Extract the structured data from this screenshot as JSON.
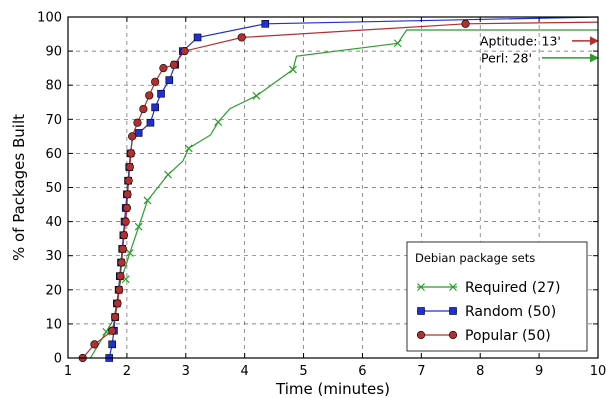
{
  "chart_data": {
    "type": "line",
    "xlabel": "Time (minutes)",
    "ylabel": "% of Packages Built",
    "xlim": [
      1,
      10
    ],
    "ylim": [
      0,
      100
    ],
    "xticks": [
      1,
      2,
      3,
      4,
      5,
      6,
      7,
      8,
      9,
      10
    ],
    "yticks": [
      0,
      10,
      20,
      30,
      40,
      50,
      60,
      70,
      80,
      90,
      100
    ],
    "grid": true,
    "grid_style": "dashed",
    "legend": {
      "title": "Debian package sets",
      "placement": "lower-right"
    },
    "series": [
      {
        "name": "Required (27)",
        "color": "#2a9d2a",
        "marker": "x",
        "x": [
          1.38,
          1.65,
          1.78,
          1.82,
          1.86,
          1.9,
          1.98,
          2.05,
          2.2,
          2.35,
          2.7,
          2.95,
          3.05,
          3.42,
          3.55,
          3.75,
          4.2,
          4.82,
          4.88,
          6.6,
          6.75,
          10.0
        ],
        "y": [
          0,
          7.7,
          11.5,
          15.4,
          19.2,
          23.1,
          26.9,
          30.8,
          38.5,
          46.2,
          53.8,
          57.7,
          61.5,
          65.4,
          69.2,
          73.1,
          76.9,
          84.6,
          88.5,
          92.3,
          96.2,
          96.2
        ],
        "markers_x": [
          1.65,
          1.98,
          2.05,
          2.2,
          2.35,
          2.7,
          3.05,
          3.55,
          4.2,
          4.82,
          6.6
        ],
        "markers_y": [
          7.7,
          23.1,
          30.8,
          38.5,
          46.2,
          53.8,
          61.5,
          69.2,
          76.9,
          84.6,
          92.3
        ]
      },
      {
        "name": "Random (50)",
        "color": "#1f2fd0",
        "marker": "square",
        "x": [
          1.7,
          1.75,
          1.78,
          1.8,
          1.83,
          1.86,
          1.88,
          1.9,
          1.92,
          1.94,
          1.96,
          1.98,
          2.0,
          2.02,
          2.04,
          2.06,
          2.1,
          2.2,
          2.4,
          2.48,
          2.58,
          2.72,
          2.82,
          2.95,
          3.2,
          4.35,
          10.0
        ],
        "y": [
          0,
          4,
          8,
          12,
          16,
          20,
          24,
          28,
          32,
          36,
          40,
          44,
          48,
          52,
          56,
          60,
          65,
          66,
          69,
          73.5,
          77.5,
          81.5,
          86,
          90,
          94,
          98,
          100
        ],
        "markers_x": [
          1.7,
          1.75,
          1.78,
          1.8,
          1.83,
          1.86,
          1.88,
          1.9,
          1.92,
          1.94,
          1.96,
          1.98,
          2.0,
          2.02,
          2.04,
          2.06,
          2.2,
          2.4,
          2.48,
          2.58,
          2.72,
          2.82,
          2.95,
          3.2,
          4.35
        ],
        "markers_y": [
          0,
          4,
          8,
          12,
          16,
          20,
          24,
          28,
          32,
          36,
          40,
          44,
          48,
          52,
          56,
          60,
          66,
          69,
          73.5,
          77.5,
          81.5,
          86,
          90,
          94,
          98
        ]
      },
      {
        "name": "Popular (50)",
        "color": "#b03030",
        "marker": "circle",
        "x": [
          1.25,
          1.45,
          1.75,
          1.8,
          1.84,
          1.87,
          1.89,
          1.91,
          1.93,
          1.95,
          1.98,
          2.0,
          2.01,
          2.03,
          2.05,
          2.07,
          2.09,
          2.18,
          2.28,
          2.38,
          2.48,
          2.62,
          2.8,
          2.98,
          3.95,
          7.75,
          10.0
        ],
        "y": [
          0,
          4,
          8,
          12,
          16,
          20,
          24,
          28,
          32,
          36,
          40,
          44,
          48,
          52,
          56,
          60,
          65,
          69,
          73,
          77,
          81,
          85,
          86,
          90,
          94,
          98,
          98.5
        ],
        "markers_x": [
          1.25,
          1.45,
          1.75,
          1.8,
          1.84,
          1.87,
          1.89,
          1.91,
          1.93,
          1.95,
          1.98,
          2.0,
          2.01,
          2.03,
          2.05,
          2.07,
          2.09,
          2.18,
          2.28,
          2.38,
          2.48,
          2.62,
          2.8,
          2.98,
          3.95,
          7.75
        ],
        "markers_y": [
          0,
          4,
          8,
          12,
          16,
          20,
          24,
          28,
          32,
          36,
          40,
          44,
          48,
          52,
          56,
          60,
          65,
          69,
          73,
          77,
          81,
          85,
          86,
          90,
          94,
          98
        ]
      }
    ],
    "annotations": [
      {
        "text": "Aptitude: 13'",
        "color": "#b03030",
        "points_to_y": 93
      },
      {
        "text": "Perl: 28'",
        "color": "#2a9d2a",
        "points_to_y": 88
      }
    ]
  }
}
